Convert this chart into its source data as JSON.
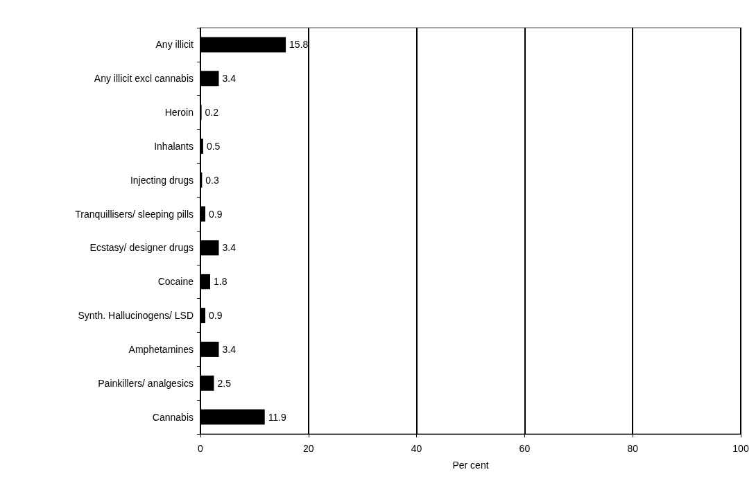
{
  "chart_data": {
    "type": "bar",
    "orientation": "horizontal",
    "xlabel": "Per cent",
    "categories": [
      "Any illicit",
      "Any illicit excl cannabis",
      "Heroin",
      "Inhalants",
      "Injecting drugs",
      "Tranquillisers/ sleeping pills",
      "Ecstasy/ designer drugs",
      "Cocaine",
      "Synth. Hallucinogens/ LSD",
      "Amphetamines",
      "Painkillers/ analgesics",
      "Cannabis"
    ],
    "values": [
      15.8,
      3.4,
      0.2,
      0.5,
      0.3,
      0.9,
      3.4,
      1.8,
      0.9,
      3.4,
      2.5,
      11.9
    ],
    "color": "#000000",
    "xlim": [
      0,
      100
    ],
    "xticks": [
      0,
      20,
      40,
      60,
      80,
      100
    ],
    "grid": "x",
    "data_labels": true
  }
}
